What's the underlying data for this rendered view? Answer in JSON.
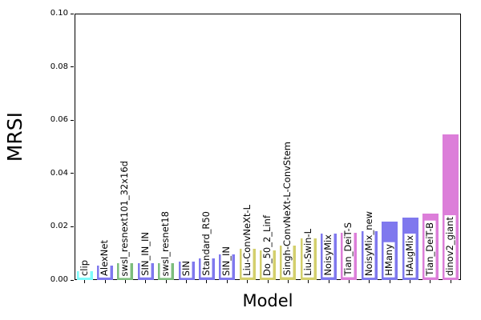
{
  "figure": {
    "background": "#ffffff",
    "axis_color": "#000000"
  },
  "chart_data": {
    "type": "bar",
    "title": "",
    "xlabel": "Model",
    "ylabel": "MRSI",
    "ylim": [
      0,
      0.1
    ],
    "yticks": [
      0,
      0.02,
      0.04,
      0.06,
      0.08,
      0.1
    ],
    "ytick_labels": [
      "0.00",
      "0.02",
      "0.04",
      "0.06",
      "0.08",
      "0.10"
    ],
    "grid": false,
    "legend": "none",
    "bar_label_position": "vertical-at-bar-base",
    "categories": [
      "clip",
      "AlexNet",
      "swsl_resnext101_32x16d",
      "SIN_IN_IN",
      "swsl_resnet18",
      "SIN",
      "Standard_R50",
      "SIN_IN",
      "Liu-ConvNeXt-L",
      "Do_50_2_Linf",
      "Singh-ConvNeXt-L-ConvStem",
      "Liu-Swin-L",
      "NoisyMix",
      "Tian_DeiT-S",
      "NoisyMix_new",
      "HMany",
      "HAugMix",
      "Tian_DeiT-B",
      "dinov2_giant"
    ],
    "values": [
      0.0032,
      0.0055,
      0.0062,
      0.0062,
      0.0063,
      0.0068,
      0.008,
      0.0096,
      0.0118,
      0.0111,
      0.013,
      0.0157,
      0.0175,
      0.0176,
      0.0183,
      0.0218,
      0.0233,
      0.0248,
      0.0548
    ],
    "bar_colors": [
      "#7dfbfb",
      "#7f78ee",
      "#7cbd7c",
      "#7f78ee",
      "#7cbd7c",
      "#7f78ee",
      "#7f78ee",
      "#7f78ee",
      "#d3cf6c",
      "#d3cf6c",
      "#d3cf6c",
      "#d3cf6c",
      "#7f78ee",
      "#dc7ed9",
      "#7f78ee",
      "#7f78ee",
      "#7f78ee",
      "#dc7ed9",
      "#dc7ed9"
    ]
  }
}
